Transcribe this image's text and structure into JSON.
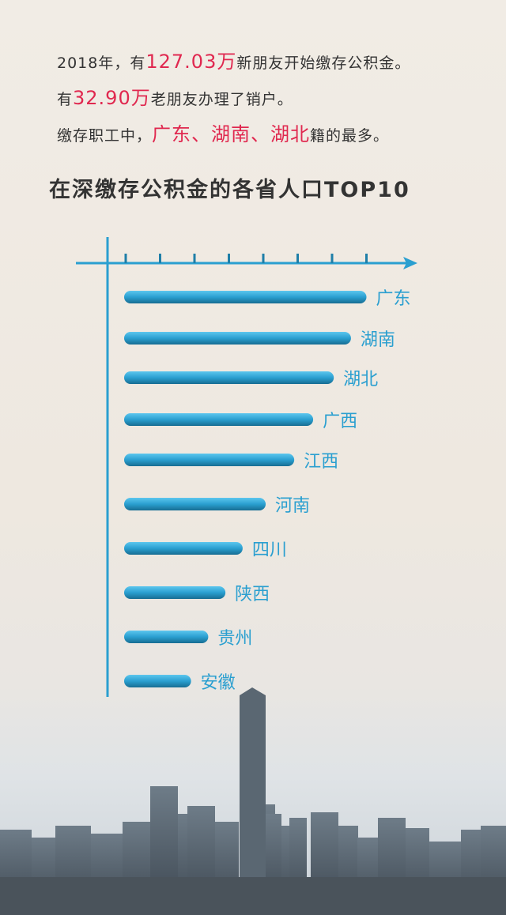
{
  "intro": {
    "line1": {
      "pre": "2018年，有",
      "highlight": "127.03万",
      "post": "新朋友开始缴存公积金。"
    },
    "line2": {
      "pre": "有",
      "highlight": "32.90万",
      "post": "老朋友办理了销户。"
    },
    "line3": {
      "pre": "缴存职工中，",
      "highlight": "广东、湖南、湖北",
      "post": "籍的最多。"
    }
  },
  "colors": {
    "highlight": "#e0284f",
    "bar": "#2a9fd0",
    "label": "#2a9fd0",
    "axis": "#2a9fd0"
  },
  "chart_data": {
    "type": "bar",
    "orientation": "horizontal",
    "title": "在深缴存公积金的各省人口TOP10",
    "categories": [
      "广东",
      "湖南",
      "湖北",
      "广西",
      "江西",
      "河南",
      "四川",
      "陕西",
      "贵州",
      "安徽"
    ],
    "values": [
      7.0,
      6.55,
      6.05,
      5.45,
      4.9,
      4.07,
      3.4,
      2.9,
      2.4,
      1.9
    ],
    "value_unit": "relative (axis tick intervals, no tick labels printed)",
    "axis_ticks": 8,
    "xlim": [
      0,
      7.5
    ],
    "grid": false,
    "legend": "none"
  }
}
